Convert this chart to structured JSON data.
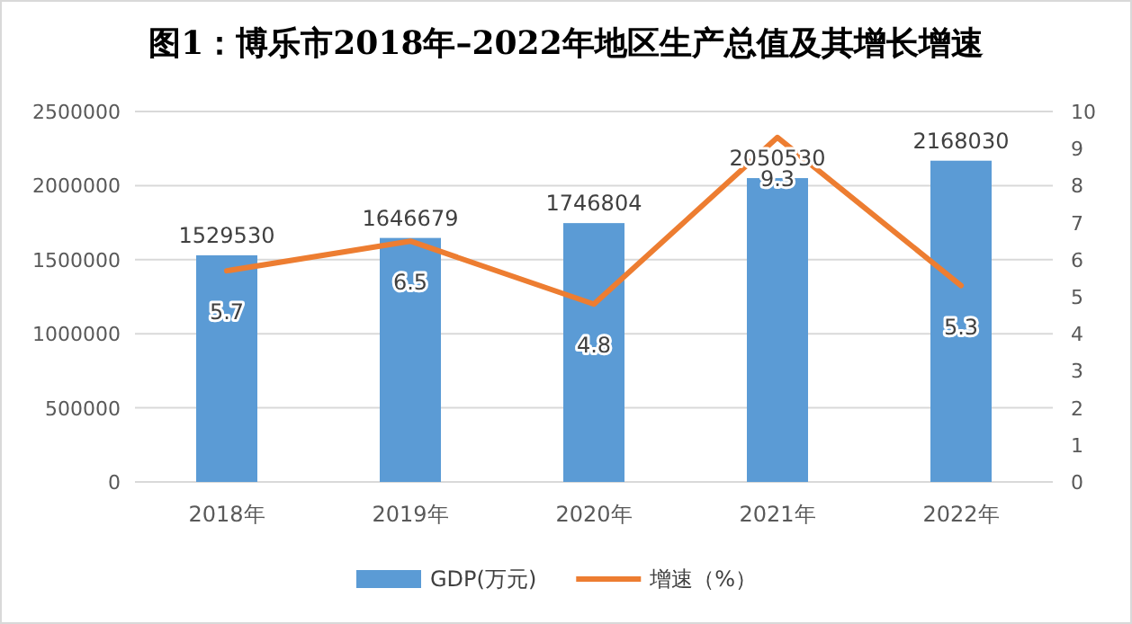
{
  "chart_data": {
    "type": "bar",
    "title": "图1：博乐市2018年–2022年地区生产总值及其增长增速",
    "categories": [
      "2018年",
      "2019年",
      "2020年",
      "2021年",
      "2022年"
    ],
    "series": [
      {
        "name": "GDP(万元)",
        "color": "#5b9bd5",
        "values": [
          1529530,
          1646679,
          1746804,
          2050530,
          2168030
        ]
      },
      {
        "name": "增速（%）",
        "type": "line",
        "axis": "y2",
        "color": "#ed7d31",
        "values": [
          5.7,
          6.5,
          4.8,
          9.3,
          5.3
        ]
      }
    ],
    "ylim": [
      0,
      2500000
    ],
    "yticks": [
      0,
      500000,
      1000000,
      1500000,
      2000000,
      2500000
    ],
    "y2lim": [
      0,
      10
    ],
    "y2ticks": [
      0,
      1,
      2,
      3,
      4,
      5,
      6,
      7,
      8,
      9,
      10
    ],
    "grid": "y",
    "legend": "bottom",
    "data_labels": true,
    "marker": "none",
    "line_style": "solid"
  }
}
